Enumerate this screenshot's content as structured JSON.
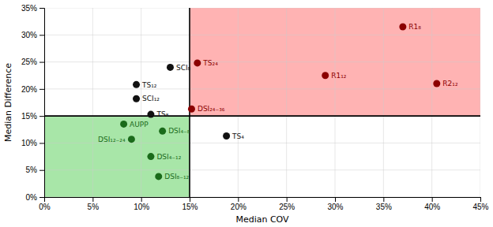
{
  "chart_data": {
    "type": "scatter",
    "xlabel": "Median COV",
    "ylabel": "Median Difference",
    "labels": [
      "SCI₈",
      "SCI₁₂",
      "TS₁₂",
      "TS₈",
      "DSI₄₋₈",
      "DSI₄₋₁₂",
      "DSI₈₋₁₂",
      "DSI₁₂₋₂₄",
      "DSI₂₄₋₃₆",
      "TS₂₄",
      "TS₄",
      "AUPP",
      "R1₈",
      "R1₁₂",
      "R2₁₂"
    ],
    "x": [
      0.13,
      0.095,
      0.095,
      0.11,
      0.122,
      0.11,
      0.118,
      0.09,
      0.152,
      0.158,
      0.188,
      0.082,
      0.37,
      0.29,
      0.405
    ],
    "values": [
      0.24,
      0.182,
      0.208,
      0.153,
      0.122,
      0.075,
      0.038,
      0.107,
      0.163,
      0.248,
      0.113,
      0.135,
      0.315,
      0.225,
      0.21
    ],
    "colors": [
      "#111111",
      "#111111",
      "#111111",
      "#111111",
      "#1a6b1a",
      "#1a6b1a",
      "#1a6b1a",
      "#1a6b1a",
      "#8b0000",
      "#8b0000",
      "#111111",
      "#1a6b1a",
      "#8b0000",
      "#8b0000",
      "#8b0000"
    ],
    "threshold_x": 0.15,
    "threshold_y": 0.15,
    "quadrant_colors": [
      "#a8e6a8",
      "#ffb3b3"
    ],
    "xlim": [
      0,
      0.45
    ],
    "ylim": [
      0,
      0.35
    ],
    "xticks": [
      {
        "value": 0,
        "label": "0%"
      },
      {
        "value": 0.05,
        "label": "5%"
      },
      {
        "value": 0.1,
        "label": "10%"
      },
      {
        "value": 0.15,
        "label": "15%"
      },
      {
        "value": 0.2,
        "label": "20%"
      },
      {
        "value": 0.25,
        "label": "25%"
      },
      {
        "value": 0.3,
        "label": "30%"
      },
      {
        "value": 0.35,
        "label": "35%"
      },
      {
        "value": 0.4,
        "label": "40%"
      },
      {
        "value": 0.45,
        "label": "45%"
      }
    ],
    "yticks": [
      {
        "value": 0,
        "label": "0%"
      },
      {
        "value": 0.05,
        "label": "5%"
      },
      {
        "value": 0.1,
        "label": "10%"
      },
      {
        "value": 0.15,
        "label": "15%"
      },
      {
        "value": 0.2,
        "label": "20%"
      },
      {
        "value": 0.25,
        "label": "25%"
      },
      {
        "value": 0.3,
        "label": "30%"
      },
      {
        "value": 0.35,
        "label": "35%"
      }
    ],
    "grid": true
  }
}
